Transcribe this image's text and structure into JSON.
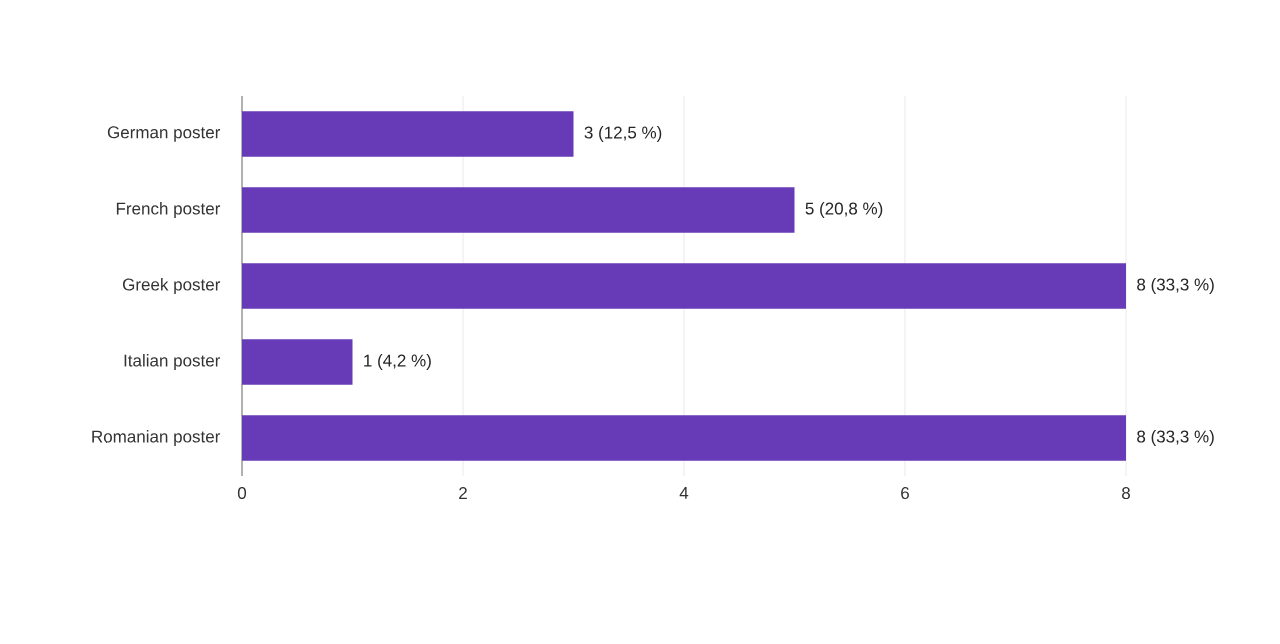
{
  "chart_data": {
    "type": "bar",
    "orientation": "horizontal",
    "categories": [
      "German poster",
      "French poster",
      "Greek poster",
      "Italian poster",
      "Romanian poster"
    ],
    "values": [
      3,
      5,
      8,
      1,
      8
    ],
    "value_labels": [
      "3 (12,5 %)",
      "5 (20,8 %)",
      "8 (33,3 %)",
      "1 (4,2 %)",
      "8 (33,3 %)"
    ],
    "color": "#673ab7",
    "xlim": [
      0,
      8
    ],
    "xticks": [
      0,
      2,
      4,
      6,
      8
    ],
    "grid": "x"
  }
}
